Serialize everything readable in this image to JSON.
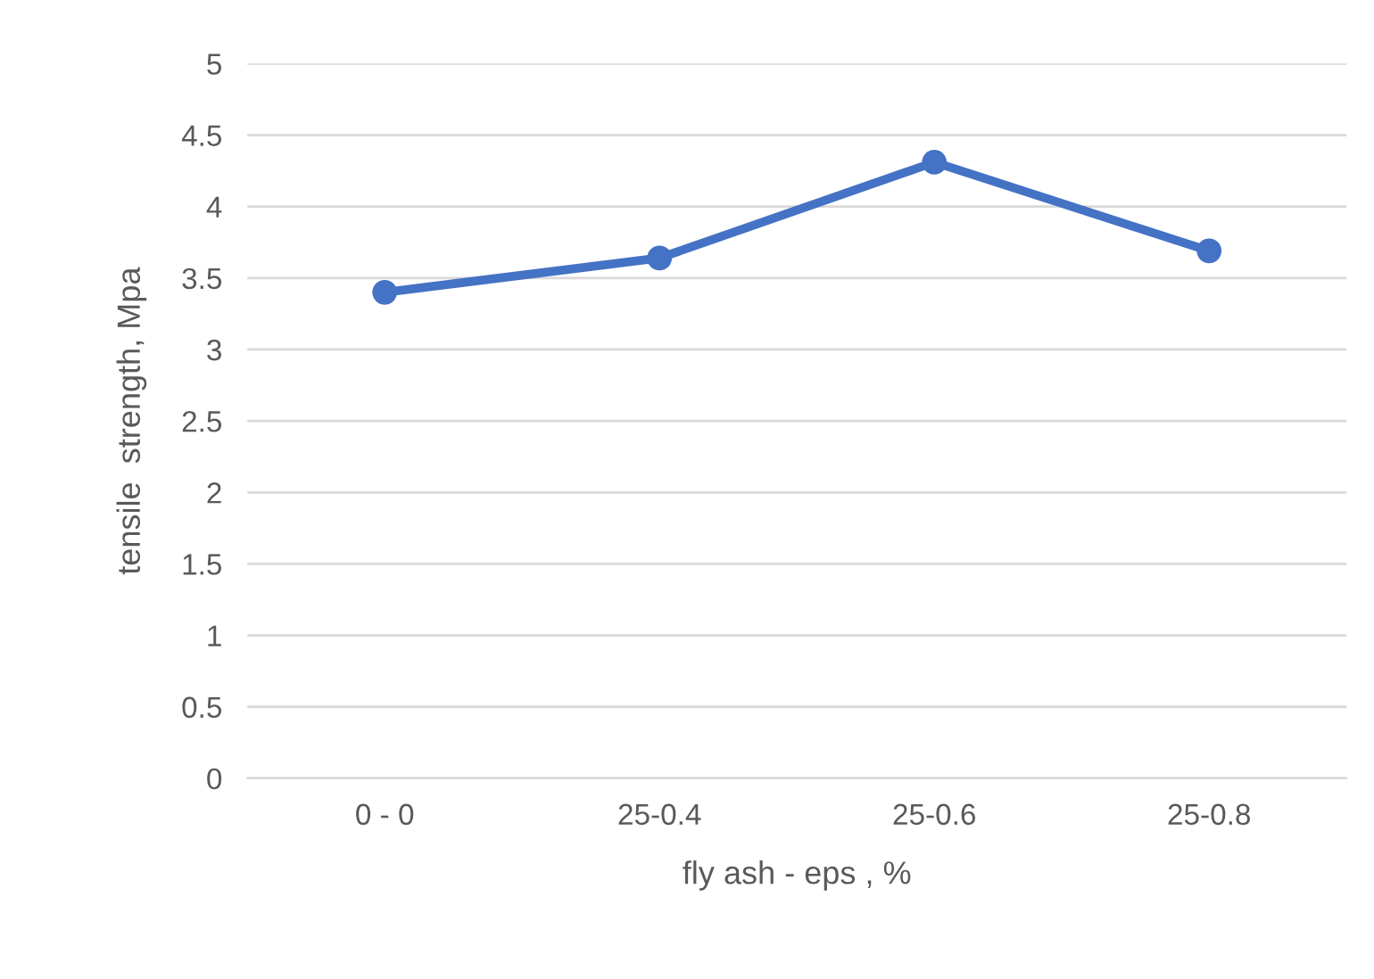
{
  "chart_data": {
    "type": "line",
    "xlabel": "fly ash - eps , %",
    "ylabel": "tensile  strength, Mpa",
    "categories": [
      "0 - 0",
      "25-0.4",
      "25-0.6",
      "25-0.8"
    ],
    "series": [
      {
        "color": "#4472c4",
        "values": [
          3.4,
          3.64,
          4.31,
          3.69
        ]
      }
    ],
    "ylim": [
      0,
      5
    ],
    "yticks": [
      0,
      0.5,
      1,
      1.5,
      2,
      2.5,
      3,
      3.5,
      4,
      4.5,
      5
    ],
    "grid": "y",
    "marker": "circle",
    "line_style": "solid"
  }
}
